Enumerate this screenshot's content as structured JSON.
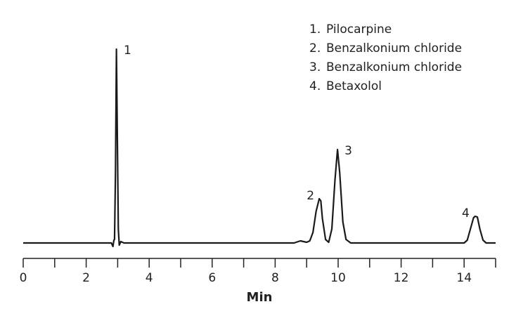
{
  "chart_data": {
    "type": "line",
    "xlabel": "Min",
    "xlim": [
      0,
      15
    ],
    "xticks": [
      0,
      2,
      4,
      6,
      8,
      10,
      12,
      14
    ],
    "xminor_ticks": [
      1,
      3,
      5,
      7,
      9,
      11,
      13,
      15
    ],
    "ylim": [
      0,
      280
    ],
    "series": [
      {
        "color": "#1a1a1a",
        "x": [
          0,
          2.8,
          2.85,
          2.88,
          2.9,
          2.93,
          2.96,
          2.99,
          3.02,
          3.05,
          3.1,
          3.2,
          8.6,
          8.8,
          9.0,
          9.1,
          9.2,
          9.3,
          9.4,
          9.45,
          9.5,
          9.6,
          9.7,
          9.8,
          9.9,
          9.98,
          10.05,
          10.15,
          10.25,
          10.4,
          14.0,
          14.1,
          14.2,
          14.3,
          14.35,
          14.42,
          14.5,
          14.6,
          14.7,
          15.0
        ],
        "values": [
          0,
          0,
          -5,
          4,
          5,
          100,
          276,
          150,
          20,
          -3,
          2,
          0,
          0,
          3,
          1,
          3,
          15,
          45,
          63,
          60,
          35,
          5,
          1,
          20,
          90,
          133,
          100,
          30,
          5,
          0,
          0,
          4,
          20,
          36,
          38,
          37,
          20,
          4,
          0,
          0
        ]
      }
    ],
    "peak_labels": [
      {
        "text": "1",
        "x": 2.97
      },
      {
        "text": "2",
        "x": 9.42
      },
      {
        "text": "3",
        "x": 9.98
      },
      {
        "text": "4",
        "x": 14.35
      }
    ],
    "legend": [
      {
        "number": "1.",
        "name": "Pilocarpine"
      },
      {
        "number": "2.",
        "name": "Benzalkonium chloride"
      },
      {
        "number": "3.",
        "name": "Benzalkonium chloride"
      },
      {
        "number": "4.",
        "name": "Betaxolol"
      }
    ]
  }
}
